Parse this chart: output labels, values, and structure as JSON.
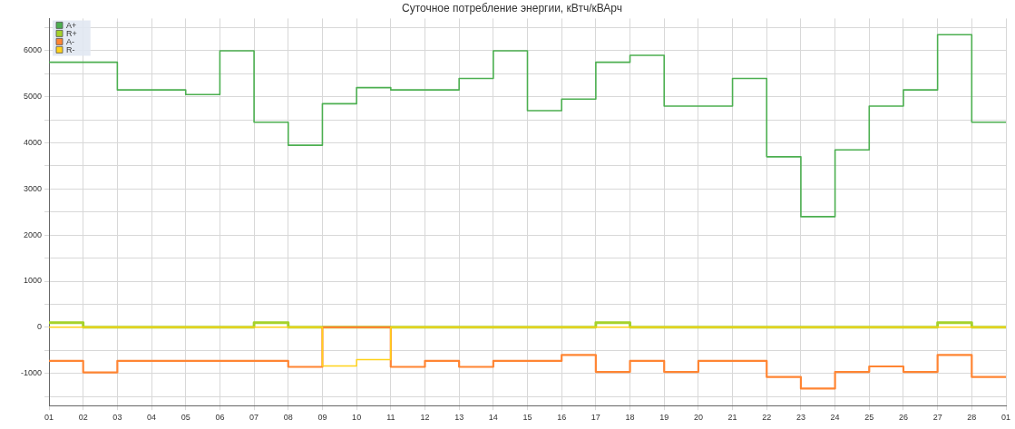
{
  "chart_data": {
    "type": "step",
    "title": "Суточное потребление энергии, кВтч/кВАрч",
    "categories": [
      "01",
      "02",
      "03",
      "04",
      "05",
      "06",
      "07",
      "08",
      "09",
      "10",
      "11",
      "12",
      "13",
      "14",
      "15",
      "16",
      "17",
      "18",
      "19",
      "20",
      "21",
      "22",
      "23",
      "24",
      "25",
      "26",
      "27",
      "28",
      "01"
    ],
    "series": [
      {
        "name": "A+",
        "color": "#4caf50",
        "values": [
          5750,
          5750,
          5150,
          5150,
          5050,
          6000,
          4450,
          3950,
          4850,
          5200,
          5150,
          5150,
          5400,
          6000,
          4700,
          4950,
          5750,
          5900,
          4800,
          4800,
          5400,
          3700,
          2400,
          3850,
          4800,
          5150,
          6350,
          4450,
          4450
        ]
      },
      {
        "name": "R+",
        "color": "#a5d22a",
        "values": [
          100,
          0,
          0,
          0,
          0,
          0,
          100,
          0,
          0,
          0,
          0,
          0,
          0,
          0,
          0,
          0,
          100,
          0,
          0,
          0,
          0,
          0,
          0,
          0,
          0,
          0,
          100,
          0,
          0
        ]
      },
      {
        "name": "A-",
        "color": "#ff8533",
        "values": [
          -730,
          -980,
          -730,
          -730,
          -730,
          -730,
          -730,
          -860,
          0,
          0,
          -860,
          -730,
          -860,
          -730,
          -730,
          -600,
          -970,
          -730,
          -970,
          -730,
          -730,
          -1080,
          -1330,
          -970,
          -850,
          -970,
          -600,
          -1080,
          -1080
        ]
      },
      {
        "name": "R-",
        "color": "#ffd21a",
        "values": [
          0,
          0,
          0,
          0,
          0,
          0,
          0,
          0,
          -840,
          -700,
          0,
          0,
          0,
          0,
          0,
          0,
          0,
          0,
          0,
          0,
          0,
          0,
          0,
          0,
          0,
          0,
          0,
          0,
          0
        ]
      }
    ],
    "ylim": [
      -1700,
      6700
    ],
    "yticks": [
      {
        "value": -1500,
        "label": null
      },
      -1000,
      {
        "value": -500,
        "label": null
      },
      0,
      {
        "value": 500,
        "label": null
      },
      1000,
      {
        "value": 1500,
        "label": null
      },
      2000,
      {
        "value": 2500,
        "label": null
      },
      3000,
      {
        "value": 3500,
        "label": null
      },
      4000,
      {
        "value": 4500,
        "label": null
      },
      5000,
      {
        "value": 5500,
        "label": null
      },
      6000,
      {
        "value": 6500,
        "label": null
      }
    ],
    "grid": true,
    "legend": "top left",
    "marker": "none",
    "line_style": "solid"
  }
}
